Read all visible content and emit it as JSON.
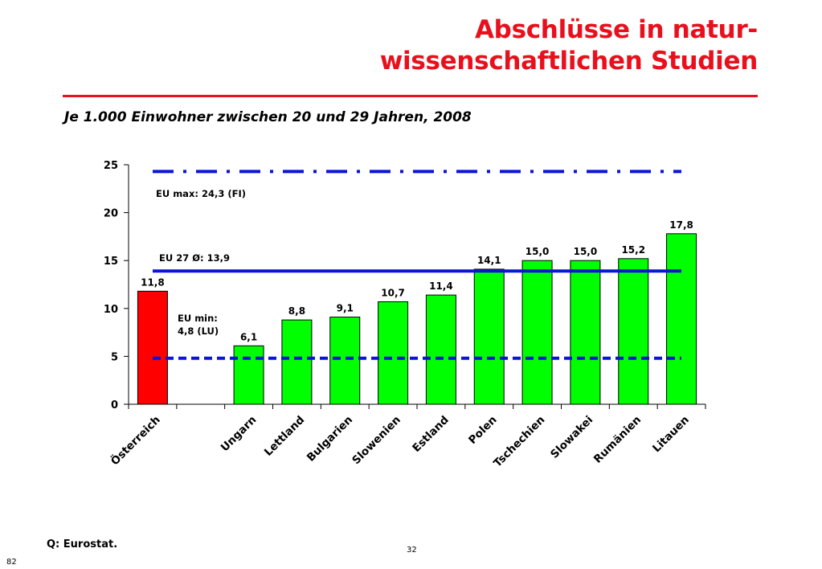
{
  "title": {
    "line1": "Abschlüsse in natur-",
    "line2": "wissenschaftlichen Studien"
  },
  "subtitle": "Je 1.000 Einwohner zwischen 20 und 29 Jahren, 2008",
  "source": "Q: Eurostat.",
  "page_number": "32",
  "slide_number": "82",
  "colors": {
    "title": "#e8101c",
    "bar_highlight": "#ff0000",
    "bar_default": "#00ff00",
    "line": "#0a14d8"
  },
  "chart_data": {
    "type": "bar",
    "categories": [
      "Österreich",
      "",
      "Ungarn",
      "Lettland",
      "Bulgarien",
      "Slowenien",
      "Estland",
      "Polen",
      "Tschechien",
      "Slowakei",
      "Rumänien",
      "Litauen"
    ],
    "values": [
      11.8,
      null,
      6.1,
      8.8,
      9.1,
      10.7,
      11.4,
      14.1,
      15.0,
      15.0,
      15.2,
      17.8
    ],
    "value_labels": [
      "11,8",
      "",
      "6,1",
      "8,8",
      "9,1",
      "10,7",
      "11,4",
      "14,1",
      "15,0",
      "15,0",
      "15,2",
      "17,8"
    ],
    "highlight_index": 0,
    "ylim": [
      0,
      25
    ],
    "yticks": [
      0,
      5,
      10,
      15,
      20,
      25
    ],
    "grid": false,
    "reference_lines": [
      {
        "value": 24.3,
        "label": "EU max: 24,3 (FI)",
        "style": "dash-dot"
      },
      {
        "value": 13.9,
        "label": "EU 27 Ø: 13,9",
        "style": "solid"
      },
      {
        "value": 4.8,
        "label_lines": [
          "EU min:",
          "4,8 (LU)"
        ],
        "style": "dashed"
      }
    ]
  }
}
